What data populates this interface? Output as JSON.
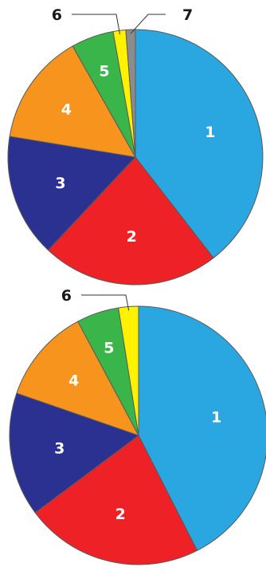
{
  "colors": {
    "1": "#2aa7e0",
    "2": "#ee2126",
    "3": "#2b3190",
    "4": "#f7941d",
    "5": "#39b54a",
    "6": "#fff200",
    "7": "#8c8c8c",
    "outline": "#5a5a5a"
  },
  "chart_data": [
    {
      "type": "pie",
      "slices": [
        {
          "label": "1",
          "value": 39.5
        },
        {
          "label": "2",
          "value": 22.5
        },
        {
          "label": "3",
          "value": 15.6
        },
        {
          "label": "4",
          "value": 14.2
        },
        {
          "label": "5",
          "value": 5.4
        },
        {
          "label": "6",
          "value": 1.6
        },
        {
          "label": "7",
          "value": 1.2
        }
      ],
      "callouts": [
        "6",
        "7"
      ]
    },
    {
      "type": "pie",
      "slices": [
        {
          "label": "1",
          "value": 42.5
        },
        {
          "label": "2",
          "value": 22.3
        },
        {
          "label": "3",
          "value": 15.5
        },
        {
          "label": "4",
          "value": 11.9
        },
        {
          "label": "5",
          "value": 5.3
        },
        {
          "label": "6",
          "value": 2.5
        }
      ],
      "callouts": [
        "6"
      ]
    }
  ]
}
